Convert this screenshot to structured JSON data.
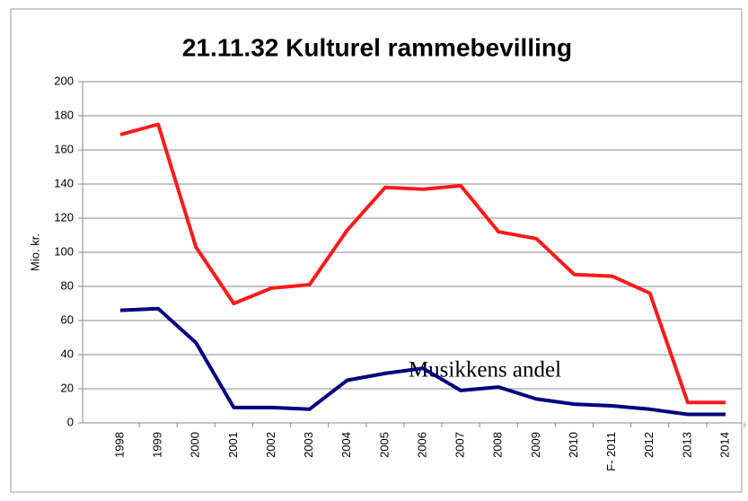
{
  "chart_data": {
    "type": "line",
    "title": "21.11.32 Kulturel rammebevilling",
    "y_label": "Mio. kr.",
    "annotation": "Musikkens andel",
    "categories": [
      "1998",
      "1999",
      "2000",
      "2001",
      "2002",
      "2003",
      "2004",
      "2005",
      "2006",
      "2007",
      "2008",
      "2009",
      "2010",
      "F- 2011",
      "2012",
      "2013",
      "2014"
    ],
    "series": [
      {
        "color": "#ff1a1a",
        "values": [
          169,
          175,
          103,
          70,
          79,
          81,
          113,
          138,
          137,
          139,
          112,
          108,
          87,
          86,
          76,
          12,
          12
        ]
      },
      {
        "color": "#000080",
        "values": [
          66,
          67,
          47,
          9,
          9,
          8,
          25,
          29,
          32,
          19,
          21,
          14,
          11,
          10,
          8,
          5,
          5
        ]
      }
    ],
    "ylim": [
      0,
      200
    ],
    "yticks": [
      0,
      20,
      40,
      60,
      80,
      100,
      120,
      140,
      160,
      180,
      200
    ],
    "grid": true
  }
}
